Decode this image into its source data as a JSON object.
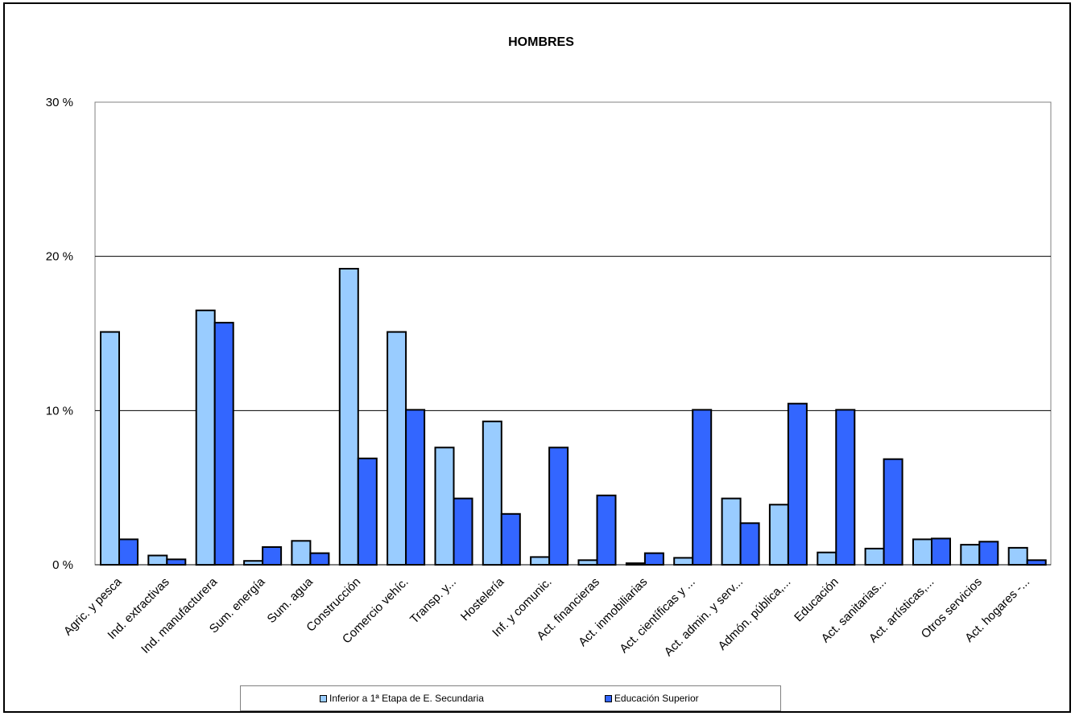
{
  "chart_data": {
    "type": "bar",
    "title": "HOMBRES",
    "xlabel": "",
    "ylabel": "",
    "ylim": [
      0,
      30
    ],
    "yticks": [
      {
        "value": 0,
        "label": "0 %"
      },
      {
        "value": 10,
        "label": "10 %"
      },
      {
        "value": 20,
        "label": "20 %"
      },
      {
        "value": 30,
        "label": "30 %"
      }
    ],
    "grid": true,
    "legend_position": "bottom",
    "categories": [
      "Agric. y pesca",
      "Ind. extractivas",
      "Ind. manufacturera",
      "Sum. energía",
      "Sum. agua",
      "Construcción",
      "Comercio vehíc.",
      "Transp. y...",
      "Hostelería",
      "Inf. y comunic.",
      "Act. financieras",
      "Act. inmobiliarias",
      "Act. científicas y ...",
      "Act. admin. y serv...",
      "Admón. pública,...",
      "Educación",
      "Act. sanitarias...",
      "Act. artísticas,...",
      "Otros servicios",
      "Act. hogares -..."
    ],
    "series": [
      {
        "name": "Inferior a 1ª Etapa de E. Secundaria",
        "color": "#99ccff",
        "values": [
          15.1,
          0.6,
          16.5,
          0.25,
          1.55,
          19.2,
          15.1,
          7.6,
          9.3,
          0.5,
          0.3,
          0.1,
          0.45,
          4.3,
          3.9,
          0.8,
          1.05,
          1.65,
          1.3,
          1.1
        ]
      },
      {
        "name": "Educación Superior",
        "color": "#3366ff",
        "values": [
          1.65,
          0.35,
          15.7,
          1.15,
          0.75,
          6.9,
          10.05,
          4.3,
          3.3,
          7.6,
          4.5,
          0.75,
          10.05,
          2.7,
          10.45,
          10.05,
          6.85,
          1.7,
          1.5,
          0.3
        ]
      }
    ]
  }
}
